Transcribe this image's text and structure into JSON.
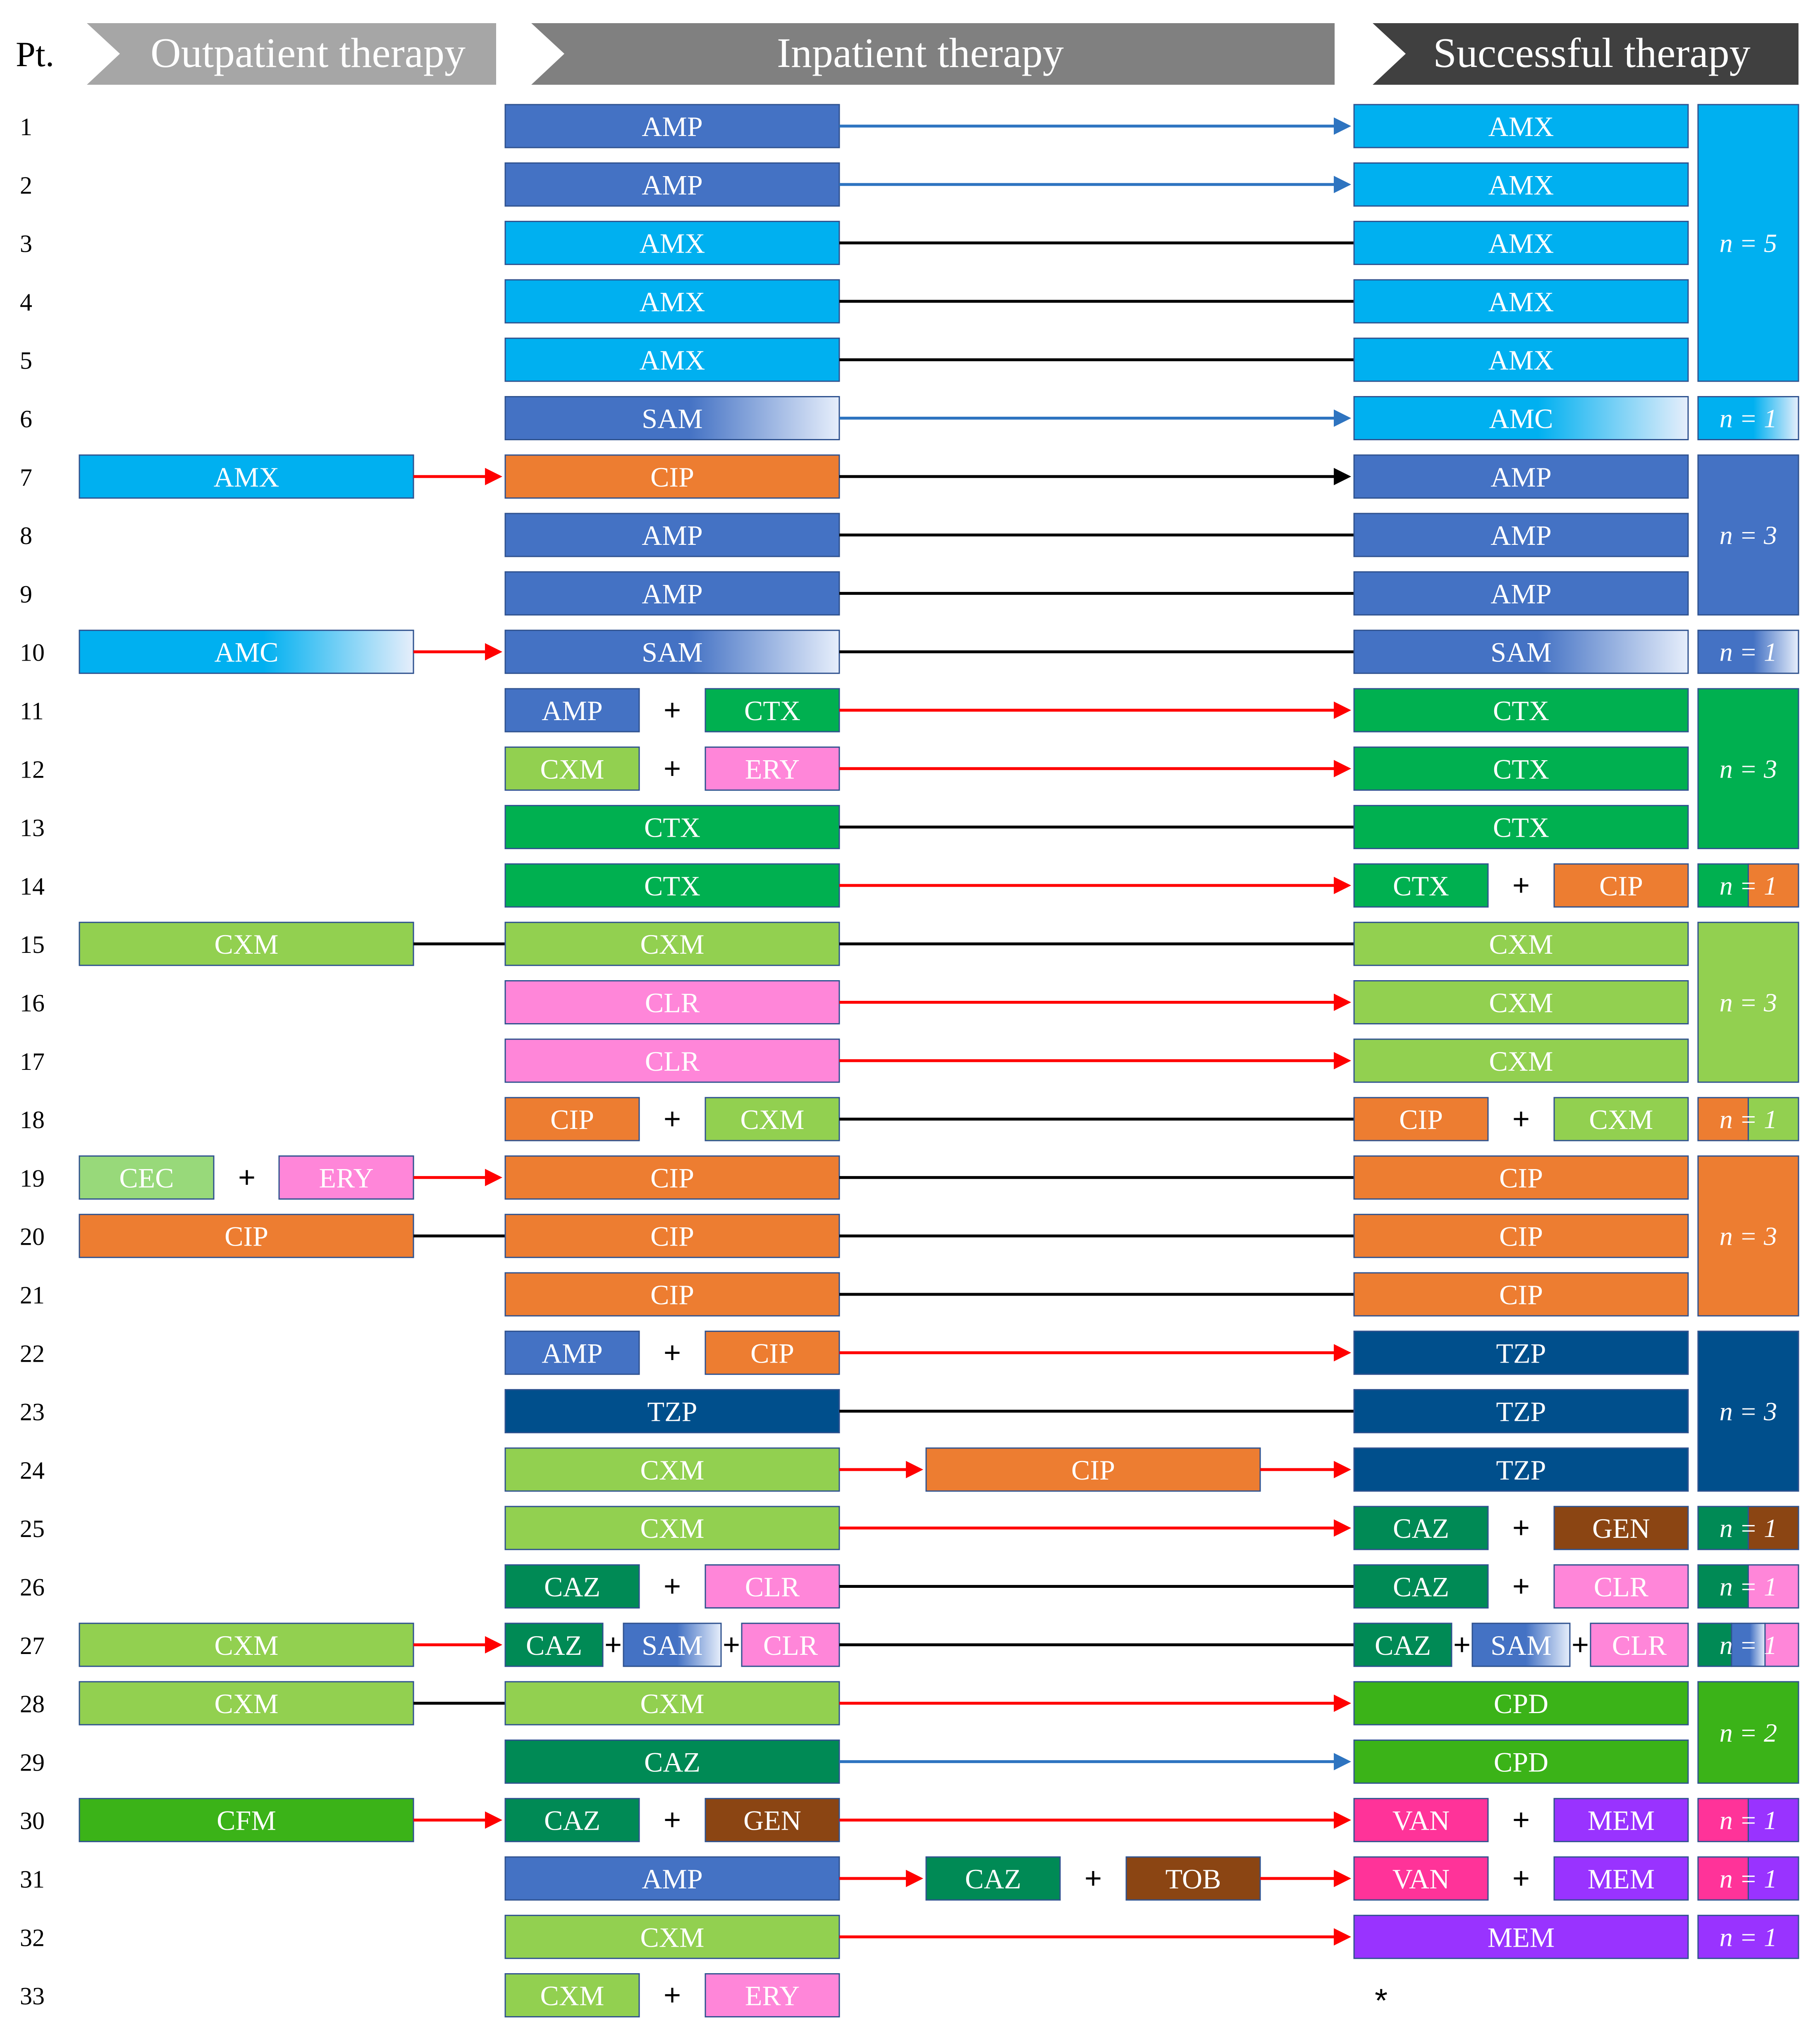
{
  "headers": {
    "pt": "Pt.",
    "outpatient": "Outpatient therapy",
    "inpatient": "Inpatient therapy",
    "successful": "Successful therapy"
  },
  "colors": {
    "AMP": "#4472c4",
    "AMX": "#00b0f0",
    "AMC": "#00b0f0",
    "SAM": "#4472c4",
    "CIP": "#ed7d31",
    "CTX": "#00b050",
    "CXM": "#92d050",
    "ERY": "#ff86d9",
    "CLR": "#ff86d9",
    "CEC": "#98d97a",
    "TZP": "#004f8c",
    "CAZ": "#008a55",
    "GEN": "#8b4513",
    "CPD": "#3bb318",
    "CFM": "#3bb318",
    "VAN": "#ff3399",
    "MEM": "#9933ff",
    "TOB": "#8b4513",
    "arrow_red": "#ff0000",
    "arrow_blue": "#2e74c0",
    "arrow_black": "#000000",
    "header_light": "#a6a6a6",
    "header_mid": "#808080",
    "header_dark": "#404040"
  },
  "plus_sign": "+",
  "no_success_marker": "*",
  "patients": [
    {
      "pt": "1",
      "out": null,
      "inp": [
        "AMP"
      ],
      "inp2": null,
      "suc": [
        "AMX"
      ],
      "link": "blue"
    },
    {
      "pt": "2",
      "out": null,
      "inp": [
        "AMP"
      ],
      "inp2": null,
      "suc": [
        "AMX"
      ],
      "link": "blue"
    },
    {
      "pt": "3",
      "out": null,
      "inp": [
        "AMX"
      ],
      "inp2": null,
      "suc": [
        "AMX"
      ],
      "link": "black"
    },
    {
      "pt": "4",
      "out": null,
      "inp": [
        "AMX"
      ],
      "inp2": null,
      "suc": [
        "AMX"
      ],
      "link": "black"
    },
    {
      "pt": "5",
      "out": null,
      "inp": [
        "AMX"
      ],
      "inp2": null,
      "suc": [
        "AMX"
      ],
      "link": "black"
    },
    {
      "pt": "6",
      "out": null,
      "inp": [
        "SAM"
      ],
      "inp2": null,
      "suc": [
        "AMC"
      ],
      "link": "blue"
    },
    {
      "pt": "7",
      "out": {
        "items": [
          "AMX"
        ],
        "link": "red"
      },
      "inp": [
        "CIP"
      ],
      "inp2": null,
      "suc": [
        "AMP"
      ],
      "link": "black-arrow"
    },
    {
      "pt": "8",
      "out": null,
      "inp": [
        "AMP"
      ],
      "inp2": null,
      "suc": [
        "AMP"
      ],
      "link": "black"
    },
    {
      "pt": "9",
      "out": null,
      "inp": [
        "AMP"
      ],
      "inp2": null,
      "suc": [
        "AMP"
      ],
      "link": "black"
    },
    {
      "pt": "10",
      "out": {
        "items": [
          "AMC"
        ],
        "link": "red"
      },
      "inp": [
        "SAM"
      ],
      "inp2": null,
      "suc": [
        "SAM"
      ],
      "link": "black"
    },
    {
      "pt": "11",
      "out": null,
      "inp": [
        "AMP",
        "CTX"
      ],
      "inp2": null,
      "suc": [
        "CTX"
      ],
      "link": "red"
    },
    {
      "pt": "12",
      "out": null,
      "inp": [
        "CXM",
        "ERY"
      ],
      "inp2": null,
      "suc": [
        "CTX"
      ],
      "link": "red"
    },
    {
      "pt": "13",
      "out": null,
      "inp": [
        "CTX"
      ],
      "inp2": null,
      "suc": [
        "CTX"
      ],
      "link": "black"
    },
    {
      "pt": "14",
      "out": null,
      "inp": [
        "CTX"
      ],
      "inp2": null,
      "suc": [
        "CTX",
        "CIP"
      ],
      "link": "red"
    },
    {
      "pt": "15",
      "out": {
        "items": [
          "CXM"
        ],
        "link": "black"
      },
      "inp": [
        "CXM"
      ],
      "inp2": null,
      "suc": [
        "CXM"
      ],
      "link": "black"
    },
    {
      "pt": "16",
      "out": null,
      "inp": [
        "CLR"
      ],
      "inp2": null,
      "suc": [
        "CXM"
      ],
      "link": "red"
    },
    {
      "pt": "17",
      "out": null,
      "inp": [
        "CLR"
      ],
      "inp2": null,
      "suc": [
        "CXM"
      ],
      "link": "red"
    },
    {
      "pt": "18",
      "out": null,
      "inp": [
        "CIP",
        "CXM"
      ],
      "inp2": null,
      "suc": [
        "CIP",
        "CXM"
      ],
      "link": "black"
    },
    {
      "pt": "19",
      "out": {
        "items": [
          "CEC",
          "ERY"
        ],
        "link": "red"
      },
      "inp": [
        "CIP"
      ],
      "inp2": null,
      "suc": [
        "CIP"
      ],
      "link": "black"
    },
    {
      "pt": "20",
      "out": {
        "items": [
          "CIP"
        ],
        "link": "black"
      },
      "inp": [
        "CIP"
      ],
      "inp2": null,
      "suc": [
        "CIP"
      ],
      "link": "black"
    },
    {
      "pt": "21",
      "out": null,
      "inp": [
        "CIP"
      ],
      "inp2": null,
      "suc": [
        "CIP"
      ],
      "link": "black"
    },
    {
      "pt": "22",
      "out": null,
      "inp": [
        "AMP",
        "CIP"
      ],
      "inp2": null,
      "suc": [
        "TZP"
      ],
      "link": "red"
    },
    {
      "pt": "23",
      "out": null,
      "inp": [
        "TZP"
      ],
      "inp2": null,
      "suc": [
        "TZP"
      ],
      "link": "black"
    },
    {
      "pt": "24",
      "out": null,
      "inp": [
        "CXM"
      ],
      "inp2": [
        "CIP"
      ],
      "suc": [
        "TZP"
      ],
      "link": "red"
    },
    {
      "pt": "25",
      "out": null,
      "inp": [
        "CXM"
      ],
      "inp2": null,
      "suc": [
        "CAZ",
        "GEN"
      ],
      "link": "red"
    },
    {
      "pt": "26",
      "out": null,
      "inp": [
        "CAZ",
        "CLR"
      ],
      "inp2": null,
      "suc": [
        "CAZ",
        "CLR"
      ],
      "link": "black"
    },
    {
      "pt": "27",
      "out": {
        "items": [
          "CXM"
        ],
        "link": "red"
      },
      "inp": [
        "CAZ",
        "SAM",
        "CLR"
      ],
      "inp2": null,
      "suc": [
        "CAZ",
        "SAM",
        "CLR"
      ],
      "link": "black"
    },
    {
      "pt": "28",
      "out": {
        "items": [
          "CXM"
        ],
        "link": "black"
      },
      "inp": [
        "CXM"
      ],
      "inp2": null,
      "suc": [
        "CPD"
      ],
      "link": "red"
    },
    {
      "pt": "29",
      "out": null,
      "inp": [
        "CAZ"
      ],
      "inp2": null,
      "suc": [
        "CPD"
      ],
      "link": "blue"
    },
    {
      "pt": "30",
      "out": {
        "items": [
          "CFM"
        ],
        "link": "red"
      },
      "inp": [
        "CAZ",
        "GEN"
      ],
      "inp2": null,
      "suc": [
        "VAN",
        "MEM"
      ],
      "link": "red"
    },
    {
      "pt": "31",
      "out": null,
      "inp": [
        "AMP"
      ],
      "inp2": [
        "CAZ",
        "TOB"
      ],
      "suc": [
        "VAN",
        "MEM"
      ],
      "link": "red"
    },
    {
      "pt": "32",
      "out": null,
      "inp": [
        "CXM"
      ],
      "inp2": null,
      "suc": [
        "MEM"
      ],
      "link": "red"
    },
    {
      "pt": "33",
      "out": null,
      "inp": [
        "CXM",
        "ERY"
      ],
      "inp2": null,
      "suc": null,
      "link": "none"
    }
  ],
  "groups": [
    {
      "from": 1,
      "to": 5,
      "label": "n = 5",
      "colors": [
        "AMX"
      ]
    },
    {
      "from": 6,
      "to": 6,
      "label": "n = 1",
      "colors": [
        "AMC"
      ]
    },
    {
      "from": 7,
      "to": 9,
      "label": "n = 3",
      "colors": [
        "AMP"
      ]
    },
    {
      "from": 10,
      "to": 10,
      "label": "n = 1",
      "colors": [
        "SAM"
      ]
    },
    {
      "from": 11,
      "to": 13,
      "label": "n = 3",
      "colors": [
        "CTX"
      ]
    },
    {
      "from": 14,
      "to": 14,
      "label": "n = 1",
      "colors": [
        "CTX",
        "CIP"
      ]
    },
    {
      "from": 15,
      "to": 17,
      "label": "n = 3",
      "colors": [
        "CXM"
      ]
    },
    {
      "from": 18,
      "to": 18,
      "label": "n = 1",
      "colors": [
        "CIP",
        "CXM"
      ]
    },
    {
      "from": 19,
      "to": 21,
      "label": "n = 3",
      "colors": [
        "CIP"
      ]
    },
    {
      "from": 22,
      "to": 24,
      "label": "n = 3",
      "colors": [
        "TZP"
      ]
    },
    {
      "from": 25,
      "to": 25,
      "label": "n = 1",
      "colors": [
        "CAZ",
        "GEN"
      ]
    },
    {
      "from": 26,
      "to": 26,
      "label": "n = 1",
      "colors": [
        "CAZ",
        "CLR"
      ]
    },
    {
      "from": 27,
      "to": 27,
      "label": "n = 1",
      "colors": [
        "CAZ",
        "SAM",
        "CLR"
      ]
    },
    {
      "from": 28,
      "to": 29,
      "label": "n = 2",
      "colors": [
        "CPD"
      ]
    },
    {
      "from": 30,
      "to": 30,
      "label": "n = 1",
      "colors": [
        "VAN",
        "MEM"
      ]
    },
    {
      "from": 31,
      "to": 31,
      "label": "n = 1",
      "colors": [
        "VAN",
        "MEM"
      ]
    },
    {
      "from": 32,
      "to": 32,
      "label": "n = 1",
      "colors": [
        "MEM"
      ]
    }
  ]
}
